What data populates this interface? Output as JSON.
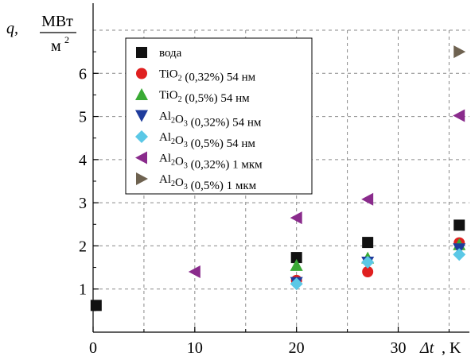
{
  "chart_data": {
    "type": "scatter",
    "ylabel": {
      "symbol": "q,",
      "unit_num": "МВт",
      "unit_den": "м",
      "unit_den_exp": "2"
    },
    "xlabel": {
      "symbol": "Δt",
      "unit": ", K"
    },
    "xlim": [
      0,
      37
    ],
    "ylim": [
      0,
      7
    ],
    "x_ticks": [
      0,
      10,
      20,
      30
    ],
    "y_ticks": [
      1,
      2,
      3,
      4,
      5,
      6
    ],
    "grid": true,
    "legend_position": "top-left",
    "series": [
      {
        "name": "вода",
        "label_parts": [
          [
            "вода",
            ""
          ]
        ],
        "marker": "square",
        "color": "#111111",
        "points": [
          [
            0.3,
            0.62
          ],
          [
            20,
            1.73
          ],
          [
            27,
            2.08
          ],
          [
            36,
            2.48
          ]
        ]
      },
      {
        "name": "TiO2 (0,32%) 54 нм",
        "label_parts": [
          [
            "TiO",
            ""
          ],
          [
            "2",
            "sub"
          ],
          [
            " (0,32%) 54 нм",
            ""
          ]
        ],
        "marker": "circle",
        "color": "#e02020",
        "points": [
          [
            20,
            1.2
          ],
          [
            27,
            1.4
          ],
          [
            36,
            2.07
          ]
        ]
      },
      {
        "name": "TiO2 (0,5%) 54 нм",
        "label_parts": [
          [
            "TiO",
            ""
          ],
          [
            "2",
            "sub"
          ],
          [
            " (0,5%) 54 нм",
            ""
          ]
        ],
        "marker": "triangle-up",
        "color": "#3aaa35",
        "points": [
          [
            20,
            1.55
          ],
          [
            27,
            1.72
          ],
          [
            36,
            2.03
          ]
        ]
      },
      {
        "name": "Al2O3 (0,32%) 54 нм",
        "label_parts": [
          [
            "Al",
            ""
          ],
          [
            "2",
            "sub"
          ],
          [
            "O",
            ""
          ],
          [
            "3",
            "sub"
          ],
          [
            " (0,32%) 54 нм",
            ""
          ]
        ],
        "marker": "triangle-down",
        "color": "#1f3c9c",
        "points": [
          [
            20,
            1.15
          ],
          [
            27,
            1.62
          ],
          [
            36,
            1.93
          ]
        ]
      },
      {
        "name": "Al2O3 (0,5%) 54 нм",
        "label_parts": [
          [
            "Al",
            ""
          ],
          [
            "2",
            "sub"
          ],
          [
            "O",
            ""
          ],
          [
            "3",
            "sub"
          ],
          [
            " (0,5%) 54 нм",
            ""
          ]
        ],
        "marker": "diamond",
        "color": "#5bc8e6",
        "points": [
          [
            20,
            1.12
          ],
          [
            27,
            1.62
          ],
          [
            36,
            1.8
          ]
        ]
      },
      {
        "name": "Al2O3 (0,32%) 1 мкм",
        "label_parts": [
          [
            "Al",
            ""
          ],
          [
            "2",
            "sub"
          ],
          [
            "O",
            ""
          ],
          [
            "3",
            "sub"
          ],
          [
            " (0,32%) 1 мкм",
            ""
          ]
        ],
        "marker": "triangle-left",
        "color": "#8a2b8c",
        "points": [
          [
            10,
            1.4
          ],
          [
            20,
            2.65
          ],
          [
            27,
            3.08
          ],
          [
            36,
            5.02
          ]
        ]
      },
      {
        "name": "Al2O3 (0,5%) 1 мкм",
        "label_parts": [
          [
            "Al",
            ""
          ],
          [
            "2",
            "sub"
          ],
          [
            "O",
            ""
          ],
          [
            "3",
            "sub"
          ],
          [
            " (0,5%) 1 мкм",
            ""
          ]
        ],
        "marker": "triangle-right",
        "color": "#6e6250",
        "points": [
          [
            36,
            6.5
          ]
        ]
      }
    ]
  }
}
